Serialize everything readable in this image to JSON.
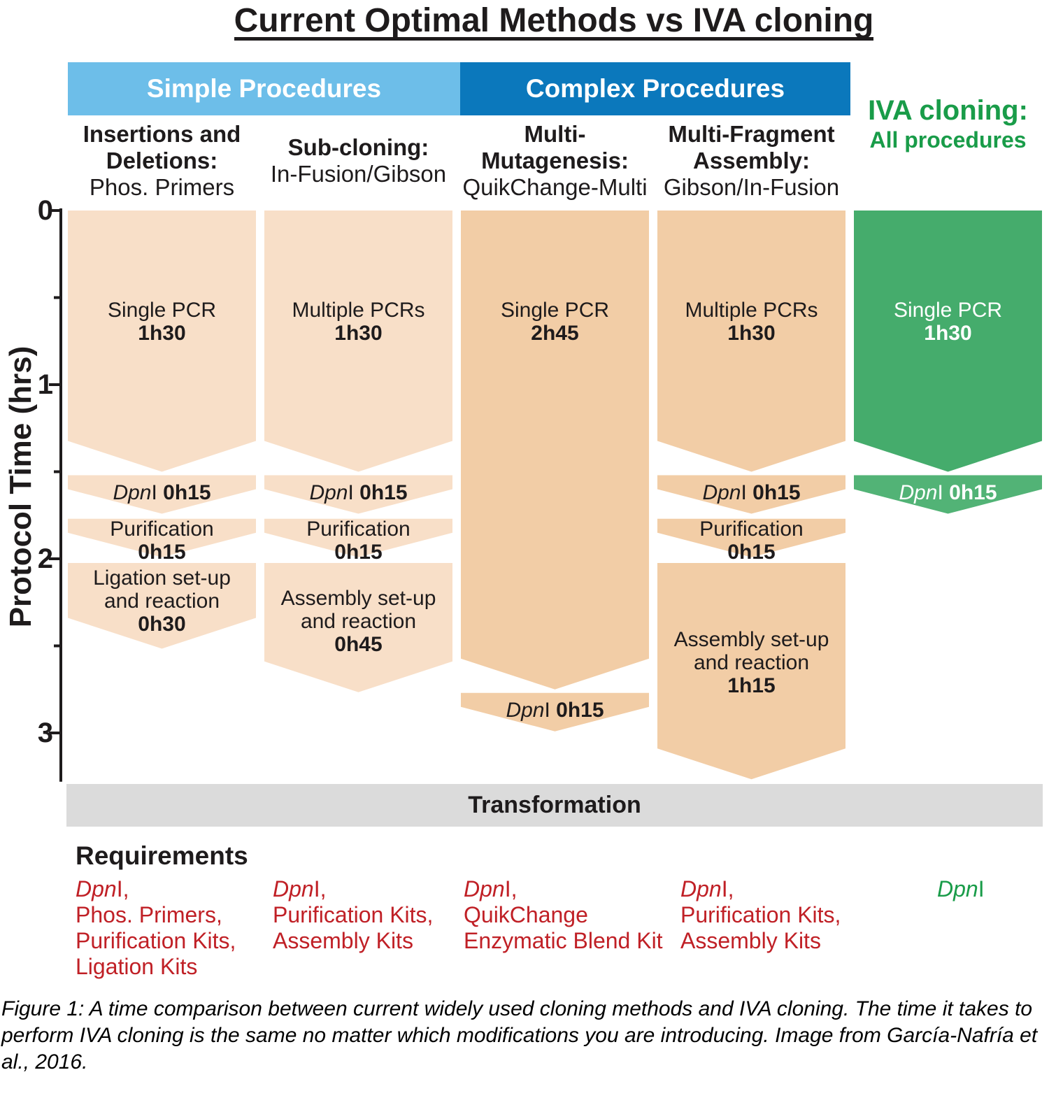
{
  "figure": {
    "title": "Current Optimal Methods vs IVA cloning",
    "group_headers": [
      {
        "id": "simple",
        "label": "Simple Procedures"
      },
      {
        "id": "complex",
        "label": "Complex Procedures"
      }
    ],
    "iva_header": {
      "title": "IVA cloning:",
      "subtitle": "All procedures"
    },
    "y_axis": {
      "label": "Protocol Time (hrs)",
      "major_ticks": [
        0,
        1,
        2,
        3
      ],
      "minor_ticks": [
        0.5,
        1.5,
        2.5
      ],
      "range": [
        0,
        3.28
      ]
    },
    "transformation_label": "Transformation",
    "requirements_title": "Requirements",
    "caption_lines": [
      "Figure 1: A time comparison between current widely used cloning methods and IVA cloning. The time it takes to",
      "perform IVA cloning is the same no matter which modifications you are introducing. Image from García-Nafría et",
      "al., 2016."
    ]
  },
  "colors": {
    "peach_light": "#f8dfc8",
    "peach_dark": "#f2cda6",
    "green_main": "#45ac6c",
    "green_band": "#52b376",
    "green_text": "#199c49",
    "blue_light": "#6dbee9",
    "blue_dark": "#0b78bc",
    "red": "#c02026",
    "gray_bar": "#dbdbdb",
    "black": "#1e1b1c",
    "white": "#ffffff"
  },
  "chart_data": {
    "type": "timeline-flow",
    "time_unit": "hours",
    "y_axis_ticks": [
      0,
      1,
      2,
      3
    ],
    "columns": [
      {
        "id": "insertions-deletions",
        "group": "simple",
        "header_lines": [
          {
            "text": "Insertions and",
            "bold": true
          },
          {
            "text": "Deletions:",
            "bold": true
          },
          {
            "text": "Phos. Primers",
            "bold": false
          }
        ],
        "fill": "peach_light",
        "label_color": "black",
        "requirements_color": "red",
        "requirements": [
          [
            {
              "t": "Dpn",
              "i": 1
            },
            {
              "t": "I,"
            }
          ],
          [
            {
              "t": "Phos. Primers,"
            }
          ],
          [
            {
              "t": "Purification Kits,"
            }
          ],
          [
            {
              "t": "Ligation Kits"
            }
          ]
        ],
        "segments": [
          {
            "name": "Single PCR",
            "duration": "1h30",
            "start": 0,
            "end": 1.5,
            "shape": "start",
            "label": [
              [
                {
                  "t": "Single PCR"
                }
              ],
              [
                {
                  "t": "1h30",
                  "b": 1
                }
              ]
            ]
          },
          {
            "name": "DpnI",
            "duration": "0h15",
            "start": 1.5,
            "end": 1.75,
            "shape": "chevron",
            "label": [
              [
                {
                  "t": "Dpn",
                  "i": 1
                },
                {
                  "t": "I "
                },
                {
                  "t": "0h15",
                  "b": 1
                }
              ]
            ]
          },
          {
            "name": "Purification",
            "duration": "0h15",
            "start": 1.75,
            "end": 2,
            "shape": "chevron",
            "label": [
              [
                {
                  "t": "Purification"
                }
              ],
              [
                {
                  "t": "0h15",
                  "b": 1
                }
              ]
            ]
          },
          {
            "name": "Ligation set-up and reaction",
            "duration": "0h30",
            "start": 2,
            "end": 2.5,
            "shape": "step",
            "label": [
              [
                {
                  "t": "Ligation set-up"
                }
              ],
              [
                {
                  "t": "and reaction"
                }
              ],
              [
                {
                  "t": "0h30",
                  "b": 1
                }
              ]
            ]
          }
        ]
      },
      {
        "id": "sub-cloning",
        "group": "simple",
        "header_lines": [
          {
            "text": "Sub-cloning:",
            "bold": true
          },
          {
            "text": "In-Fusion/Gibson",
            "bold": false
          }
        ],
        "fill": "peach_light",
        "label_color": "black",
        "requirements_color": "red",
        "requirements": [
          [
            {
              "t": "Dpn",
              "i": 1
            },
            {
              "t": "I,"
            }
          ],
          [
            {
              "t": "Purification Kits,"
            }
          ],
          [
            {
              "t": "Assembly Kits"
            }
          ]
        ],
        "segments": [
          {
            "name": "Multiple PCRs",
            "duration": "1h30",
            "start": 0,
            "end": 1.5,
            "shape": "start",
            "label": [
              [
                {
                  "t": "Multiple PCRs"
                }
              ],
              [
                {
                  "t": "1h30",
                  "b": 1
                }
              ]
            ]
          },
          {
            "name": "DpnI",
            "duration": "0h15",
            "start": 1.5,
            "end": 1.75,
            "shape": "chevron",
            "label": [
              [
                {
                  "t": "Dpn",
                  "i": 1
                },
                {
                  "t": "I "
                },
                {
                  "t": "0h15",
                  "b": 1
                }
              ]
            ]
          },
          {
            "name": "Purification",
            "duration": "0h15",
            "start": 1.75,
            "end": 2,
            "shape": "chevron",
            "label": [
              [
                {
                  "t": "Purification"
                }
              ],
              [
                {
                  "t": "0h15",
                  "b": 1
                }
              ]
            ]
          },
          {
            "name": "Assembly set-up and reaction",
            "duration": "0h45",
            "start": 2,
            "end": 2.75,
            "shape": "step",
            "label": [
              [
                {
                  "t": "Assembly set-up"
                }
              ],
              [
                {
                  "t": "and reaction"
                }
              ],
              [
                {
                  "t": "0h45",
                  "b": 1
                }
              ]
            ]
          }
        ]
      },
      {
        "id": "multi-mutagenesis",
        "group": "complex",
        "header_lines": [
          {
            "text": "Multi-",
            "bold": true
          },
          {
            "text": "Mutagenesis:",
            "bold": true
          },
          {
            "text": "QuikChange-Multi",
            "bold": false
          }
        ],
        "fill": "peach_dark",
        "label_color": "black",
        "requirements_color": "red",
        "requirements": [
          [
            {
              "t": "Dpn",
              "i": 1
            },
            {
              "t": "I,"
            }
          ],
          [
            {
              "t": "QuikChange"
            }
          ],
          [
            {
              "t": "Enzymatic Blend Kit"
            }
          ]
        ],
        "segments": [
          {
            "name": "Single PCR",
            "duration": "2h45",
            "start": 0,
            "end": 2.75,
            "shape": "start",
            "label": [
              [
                {
                  "t": "Single PCR"
                }
              ],
              [
                {
                  "t": "2h45",
                  "b": 1
                }
              ]
            ]
          },
          {
            "name": "DpnI",
            "duration": "0h15",
            "start": 2.75,
            "end": 3,
            "shape": "chevron",
            "label": [
              [
                {
                  "t": "Dpn",
                  "i": 1
                },
                {
                  "t": "I "
                },
                {
                  "t": "0h15",
                  "b": 1
                }
              ]
            ]
          }
        ]
      },
      {
        "id": "multi-fragment-assembly",
        "group": "complex",
        "header_lines": [
          {
            "text": "Multi-Fragment",
            "bold": true
          },
          {
            "text": "Assembly:",
            "bold": true
          },
          {
            "text": "Gibson/In-Fusion",
            "bold": false
          }
        ],
        "fill": "peach_dark",
        "label_color": "black",
        "requirements_color": "red",
        "requirements": [
          [
            {
              "t": "Dpn",
              "i": 1
            },
            {
              "t": "I,"
            }
          ],
          [
            {
              "t": "Purification Kits,"
            }
          ],
          [
            {
              "t": "Assembly Kits"
            }
          ]
        ],
        "segments": [
          {
            "name": "Multiple PCRs",
            "duration": "1h30",
            "start": 0,
            "end": 1.5,
            "shape": "start",
            "label": [
              [
                {
                  "t": "Multiple PCRs"
                }
              ],
              [
                {
                  "t": "1h30",
                  "b": 1
                }
              ]
            ]
          },
          {
            "name": "DpnI",
            "duration": "0h15",
            "start": 1.5,
            "end": 1.75,
            "shape": "chevron",
            "label": [
              [
                {
                  "t": "Dpn",
                  "i": 1
                },
                {
                  "t": "I "
                },
                {
                  "t": "0h15",
                  "b": 1
                }
              ]
            ]
          },
          {
            "name": "Purification",
            "duration": "0h15",
            "start": 1.75,
            "end": 2,
            "shape": "chevron",
            "label": [
              [
                {
                  "t": "Purification"
                }
              ],
              [
                {
                  "t": "0h15",
                  "b": 1
                }
              ]
            ]
          },
          {
            "name": "Assembly set-up and reaction",
            "duration": "1h15",
            "start": 2,
            "end": 3.25,
            "shape": "step",
            "label": [
              [
                {
                  "t": "Assembly set-up"
                }
              ],
              [
                {
                  "t": "and reaction"
                }
              ],
              [
                {
                  "t": "1h15",
                  "b": 1
                }
              ]
            ]
          }
        ]
      },
      {
        "id": "iva-cloning",
        "group": "iva",
        "header_lines": [],
        "fill": "green_main",
        "band_fill": "green_band",
        "label_color": "white",
        "requirements_color": "green_text",
        "requirements": [
          [
            {
              "t": "Dpn",
              "i": 1
            },
            {
              "t": "I"
            }
          ]
        ],
        "segments": [
          {
            "name": "Single PCR",
            "duration": "1h30",
            "start": 0,
            "end": 1.5,
            "shape": "start",
            "label": [
              [
                {
                  "t": "Single PCR"
                }
              ],
              [
                {
                  "t": "1h30",
                  "b": 1
                }
              ]
            ]
          },
          {
            "name": "DpnI",
            "duration": "0h15",
            "start": 1.5,
            "end": 1.75,
            "shape": "chevron",
            "label": [
              [
                {
                  "t": "Dpn",
                  "i": 1
                },
                {
                  "t": "I "
                },
                {
                  "t": "0h15",
                  "b": 1
                }
              ]
            ]
          }
        ]
      }
    ]
  }
}
